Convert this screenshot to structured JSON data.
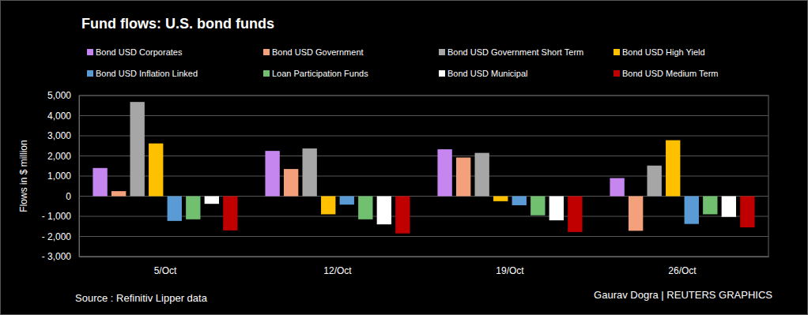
{
  "chart_data": {
    "type": "bar",
    "title": "Fund flows: U.S. bond funds",
    "y_label": "Flows in $ million",
    "source": "Source : Refinitiv Lipper data",
    "credit": "Gaurav Dogra | REUTERS GRAPHICS",
    "categories": [
      "5/Oct",
      "12/Oct",
      "19/Oct",
      "26/Oct"
    ],
    "series": [
      {
        "name": "Bond USD Corporates",
        "color": "#c586f0",
        "values": [
          1400,
          2250,
          2330,
          900
        ]
      },
      {
        "name": "Bond USD Government",
        "color": "#f4a07a",
        "values": [
          250,
          1350,
          1920,
          -1720
        ]
      },
      {
        "name": "Bond USD Government Short Term",
        "color": "#a6a6a6",
        "values": [
          4680,
          2370,
          2150,
          1520
        ]
      },
      {
        "name": "Bond USD High Yield",
        "color": "#ffc000",
        "values": [
          2620,
          -900,
          -250,
          2780
        ]
      },
      {
        "name": "Bond USD Inflation Linked",
        "color": "#5b9bd5",
        "values": [
          -1230,
          -420,
          -450,
          -1380
        ]
      },
      {
        "name": "Loan Participation Funds",
        "color": "#70c070",
        "values": [
          -1150,
          -1150,
          -950,
          -900
        ]
      },
      {
        "name": "Bond USD Municipal",
        "color": "#ffffff",
        "values": [
          -380,
          -1400,
          -1200,
          -1030
        ]
      },
      {
        "name": "Bond USD Medium Term",
        "color": "#c00000",
        "values": [
          -1700,
          -1850,
          -1780,
          -1550
        ]
      }
    ],
    "ylim": [
      -3000,
      5000
    ],
    "yticks": [
      {
        "value": 5000,
        "label": "5,000"
      },
      {
        "value": 4000,
        "label": "4,000"
      },
      {
        "value": 3000,
        "label": "3,000"
      },
      {
        "value": 2000,
        "label": "2,000"
      },
      {
        "value": 1000,
        "label": "1,000"
      },
      0,
      {
        "value": -1000,
        "label": "- 1,000"
      },
      {
        "value": -2000,
        "label": "- 2,000"
      },
      {
        "value": -3000,
        "label": "- 3,000"
      }
    ],
    "grid": true,
    "legend": "top"
  }
}
